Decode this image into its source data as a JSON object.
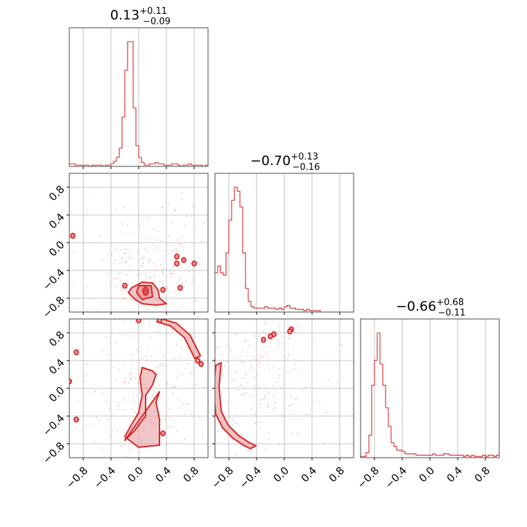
{
  "chart_data": {
    "type": "corner",
    "params": 3,
    "range": [
      -1.0,
      1.0
    ],
    "grid": true,
    "ticks": [
      -0.8,
      -0.4,
      0.0,
      0.4,
      0.8
    ],
    "tick_labels": [
      "−0.8",
      "−0.4",
      "0.0",
      "0.4",
      "0.8"
    ],
    "colors": {
      "line": "#d62728",
      "fill": "#e8979a",
      "points": "#f4b6b8",
      "grid": "#b0b0b0"
    },
    "titles": [
      {
        "median": "0.13",
        "plus": "+0.11",
        "minus": "−0.09"
      },
      {
        "median": "−0.70",
        "plus": "+0.13",
        "minus": "−0.16"
      },
      {
        "median": "−0.66",
        "plus": "+0.68",
        "minus": "−0.11"
      }
    ],
    "histograms": [
      {
        "param": 0,
        "bin_edges_start": -1.0,
        "bin_width": 0.04,
        "counts": [
          2,
          2,
          1,
          1,
          1,
          1,
          1,
          0,
          1,
          1,
          1,
          1,
          0,
          1,
          1,
          2,
          4,
          7,
          14,
          38,
          74,
          96,
          96,
          45,
          16,
          7,
          3,
          1,
          1,
          2,
          2,
          3,
          2,
          2,
          1,
          1,
          1,
          2,
          2,
          1,
          0,
          1,
          1,
          2,
          1,
          1,
          1,
          1,
          0,
          1
        ]
      },
      {
        "param": 1,
        "bin_edges_start": -1.0,
        "bin_width": 0.04,
        "counts": [
          30,
          35,
          30,
          28,
          45,
          70,
          85,
          95,
          92,
          80,
          45,
          18,
          8,
          4,
          3,
          3,
          3,
          3,
          4,
          3,
          3,
          3,
          2,
          3,
          2,
          4,
          5,
          3,
          3,
          2,
          2,
          2,
          1,
          2,
          1,
          1,
          1,
          1,
          0,
          0,
          0,
          0,
          0,
          0,
          0,
          0,
          0,
          0,
          0,
          0
        ]
      },
      {
        "param": 2,
        "bin_edges_start": -1.0,
        "bin_width": 0.04,
        "counts": [
          1,
          1,
          4,
          18,
          58,
          78,
          100,
          75,
          58,
          40,
          25,
          12,
          9,
          6,
          6,
          5,
          3,
          3,
          3,
          3,
          2,
          2,
          2,
          2,
          2,
          2,
          3,
          2,
          2,
          2,
          3,
          3,
          2,
          2,
          2,
          2,
          2,
          1,
          2,
          1,
          2,
          1,
          1,
          1,
          2,
          1,
          2,
          2,
          1,
          2
        ]
      }
    ],
    "pairs": [
      {
        "x": 0,
        "y": 1,
        "outer_contour": [
          [
            -0.1,
            -0.65
          ],
          [
            0.05,
            -0.57
          ],
          [
            0.2,
            -0.58
          ],
          [
            0.28,
            -0.68
          ],
          [
            0.3,
            -0.8
          ],
          [
            0.4,
            -0.88
          ],
          [
            0.25,
            -0.9
          ],
          [
            0.05,
            -0.88
          ],
          [
            -0.05,
            -0.82
          ],
          [
            -0.15,
            -0.72
          ]
        ],
        "inner_contour": [
          [
            0.0,
            -0.62
          ],
          [
            0.18,
            -0.62
          ],
          [
            0.2,
            -0.78
          ],
          [
            0.05,
            -0.82
          ],
          [
            -0.03,
            -0.72
          ]
        ],
        "core": [
          0.1,
          -0.7
        ],
        "islands": [
          [
            -0.95,
            0.1
          ],
          [
            -0.2,
            -0.62
          ],
          [
            0.55,
            -0.2
          ],
          [
            0.65,
            -0.25
          ],
          [
            0.55,
            -0.3
          ],
          [
            0.6,
            -0.65
          ],
          [
            0.8,
            -0.3
          ],
          [
            0.35,
            -0.68
          ]
        ],
        "scatter_center": [
          0.2,
          -0.3
        ],
        "scatter_spread": [
          0.5,
          0.45
        ]
      },
      {
        "x": 0,
        "y": 2,
        "outer_contour": [
          [
            -0.2,
            -0.75
          ],
          [
            -0.05,
            -0.6
          ],
          [
            0.1,
            -0.4
          ],
          [
            0.1,
            -0.1
          ],
          [
            0.2,
            0.05
          ],
          [
            0.25,
            0.2
          ],
          [
            0.2,
            0.25
          ],
          [
            0.05,
            0.3
          ],
          [
            0.02,
            0.15
          ],
          [
            0.05,
            -0.1
          ],
          [
            0.0,
            -0.35
          ],
          [
            -0.12,
            -0.55
          ],
          [
            -0.2,
            -0.7
          ],
          [
            0.0,
            -0.85
          ],
          [
            0.3,
            -0.82
          ],
          [
            0.3,
            -0.45
          ],
          [
            0.25,
            -0.2
          ],
          [
            0.3,
            -0.05
          ]
        ],
        "band": [
          [
            0.3,
            0.98
          ],
          [
            0.5,
            0.92
          ],
          [
            0.7,
            0.75
          ],
          [
            0.8,
            0.55
          ],
          [
            0.85,
            0.45
          ]
        ],
        "islands": [
          [
            -0.9,
            0.52
          ],
          [
            -0.9,
            -0.45
          ],
          [
            -1.0,
            0.1
          ],
          [
            0.35,
            -0.65
          ],
          [
            0.85,
            0.4
          ],
          [
            0.9,
            0.35
          ],
          [
            0.0,
            0.98
          ],
          [
            0.3,
            0.98
          ]
        ],
        "scatter_center": [
          0.1,
          -0.1
        ],
        "scatter_spread": [
          0.5,
          0.55
        ]
      },
      {
        "x": 1,
        "y": 2,
        "band": [
          [
            -0.95,
            0.35
          ],
          [
            -0.98,
            0.0
          ],
          [
            -0.95,
            -0.35
          ],
          [
            -0.85,
            -0.55
          ],
          [
            -0.7,
            -0.7
          ],
          [
            -0.55,
            -0.8
          ],
          [
            -0.45,
            -0.85
          ]
        ],
        "islands": [
          [
            -0.3,
            0.7
          ],
          [
            -0.2,
            0.75
          ],
          [
            -0.15,
            0.78
          ],
          [
            0.1,
            0.85
          ],
          [
            0.08,
            0.82
          ]
        ],
        "scatter_center": [
          -0.4,
          0.1
        ],
        "scatter_spread": [
          0.45,
          0.55
        ]
      }
    ]
  }
}
